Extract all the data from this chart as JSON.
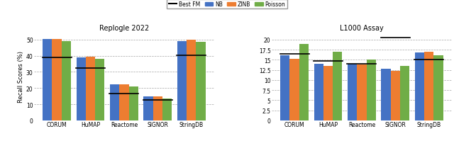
{
  "replogle": {
    "title": "Replogle 2022",
    "categories": [
      "CORUM",
      "HuMAP",
      "Reactome",
      "SIGNOR",
      "StringDB"
    ],
    "NB": [
      50.4,
      38.9,
      22.3,
      14.8,
      49.2
    ],
    "ZINB": [
      50.4,
      39.3,
      22.3,
      14.9,
      50.0
    ],
    "Poisson": [
      49.0,
      38.2,
      21.0,
      13.6,
      48.7
    ],
    "best_fm": [
      39.1,
      32.2,
      16.8,
      12.8,
      40.2
    ],
    "ylim": [
      0,
      55
    ],
    "yticks": [
      0,
      10,
      20,
      30,
      40,
      50
    ]
  },
  "l1000": {
    "title": "L1000 Assay",
    "categories": [
      "CORUM",
      "HuMAP",
      "Reactome",
      "SIGNOR",
      "StringDB"
    ],
    "NB": [
      16.1,
      14.1,
      14.0,
      12.7,
      16.8
    ],
    "ZINB": [
      15.3,
      13.5,
      13.9,
      12.3,
      17.0
    ],
    "Poisson": [
      19.0,
      17.0,
      15.0,
      13.5,
      16.1
    ],
    "best_fm": [
      16.4,
      14.7,
      14.1,
      20.5,
      15.1
    ],
    "ylim": [
      0,
      22
    ],
    "yticks": [
      0.0,
      2.5,
      5.0,
      7.5,
      10.0,
      12.5,
      15.0,
      17.5,
      20.0
    ]
  },
  "colors": {
    "NB": "#4472c4",
    "ZINB": "#ed7d31",
    "Poisson": "#70ad47"
  },
  "ylabel": "Recall Scores (%)",
  "bar_width": 0.28
}
